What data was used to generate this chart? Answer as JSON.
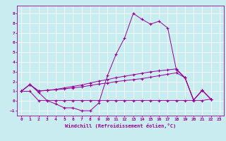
{
  "xlabel": "Windchill (Refroidissement éolien,°C)",
  "bg_color": "#c8ecf0",
  "line_color": "#990099",
  "grid_color": "#ffffff",
  "xlim": [
    -0.5,
    23.5
  ],
  "ylim": [
    -1.5,
    9.8
  ],
  "xticks": [
    0,
    1,
    2,
    3,
    4,
    5,
    6,
    7,
    8,
    9,
    10,
    11,
    12,
    13,
    14,
    15,
    16,
    17,
    18,
    19,
    20,
    21,
    22,
    23
  ],
  "yticks": [
    -1,
    0,
    1,
    2,
    3,
    4,
    5,
    6,
    7,
    8,
    9
  ],
  "x": [
    0,
    1,
    2,
    3,
    4,
    5,
    6,
    7,
    8,
    9,
    10,
    11,
    12,
    13,
    14,
    15,
    16,
    17,
    18,
    19,
    20,
    21,
    22
  ],
  "line1": [
    1.0,
    1.7,
    0.9,
    0.05,
    -0.3,
    -0.7,
    -0.7,
    -1.0,
    -1.0,
    -0.2,
    2.6,
    4.8,
    6.5,
    9.0,
    8.4,
    7.9,
    8.2,
    7.5,
    3.2,
    2.4,
    0.1,
    1.1,
    0.2
  ],
  "line2": [
    1.0,
    1.7,
    1.05,
    1.1,
    1.15,
    1.25,
    1.35,
    1.45,
    1.6,
    1.75,
    1.85,
    2.0,
    2.1,
    2.2,
    2.3,
    2.45,
    2.6,
    2.75,
    2.9,
    2.4,
    0.1,
    1.1,
    0.2
  ],
  "line3": [
    1.0,
    1.0,
    0.05,
    0.05,
    0.05,
    0.05,
    0.05,
    0.05,
    0.05,
    0.05,
    0.05,
    0.05,
    0.05,
    0.05,
    0.05,
    0.05,
    0.05,
    0.05,
    0.05,
    0.05,
    0.05,
    0.05,
    0.2
  ],
  "line4": [
    1.0,
    1.7,
    1.0,
    1.1,
    1.2,
    1.35,
    1.5,
    1.65,
    1.85,
    2.05,
    2.2,
    2.4,
    2.55,
    2.7,
    2.85,
    3.0,
    3.1,
    3.2,
    3.3,
    2.4,
    0.1,
    1.1,
    0.2
  ]
}
